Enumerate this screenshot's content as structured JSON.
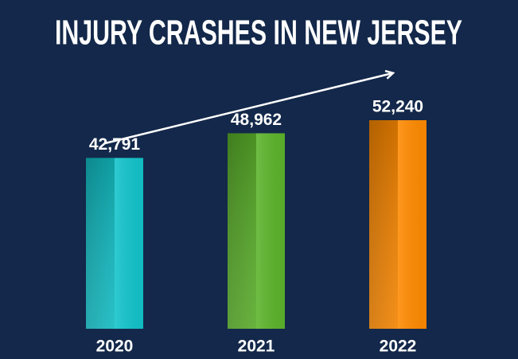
{
  "chart_data": {
    "type": "bar",
    "title": "INJURY CRASHES IN NEW JERSEY",
    "categories": [
      "2020",
      "2021",
      "2022"
    ],
    "values": [
      42791,
      48962,
      52240
    ],
    "value_labels": [
      "42,791",
      "48,962",
      "52,240"
    ],
    "colors": [
      "#12c4cb",
      "#5cb42b",
      "#ff8a00"
    ]
  }
}
